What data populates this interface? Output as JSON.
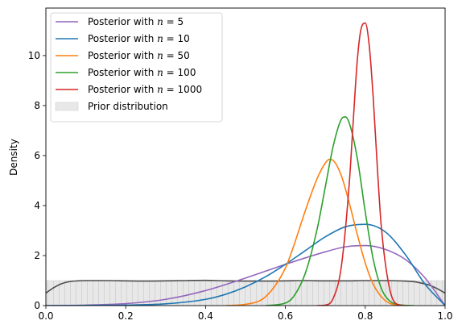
{
  "chart_data": {
    "type": "line",
    "xlabel": "",
    "ylabel": "Density",
    "xlim": [
      0,
      1
    ],
    "ylim": [
      0,
      11.9
    ],
    "x_ticks": [
      0.0,
      0.2,
      0.4,
      0.6,
      0.8,
      1.0
    ],
    "x_tick_labels": [
      "0.0",
      "0.2",
      "0.4",
      "0.6",
      "0.8",
      "1.0"
    ],
    "y_ticks": [
      0,
      2,
      4,
      6,
      8,
      10
    ],
    "y_tick_labels": [
      "0",
      "2",
      "4",
      "6",
      "8",
      "10"
    ],
    "grid": false,
    "legend_position": "upper-left",
    "prior": {
      "name": "Prior distribution",
      "fill_color": "#e8e8e8",
      "line_color": "#4d4d4d",
      "x": [
        0.0,
        0.02,
        0.04,
        0.06,
        0.08,
        0.1,
        0.15,
        0.2,
        0.25,
        0.3,
        0.35,
        0.4,
        0.45,
        0.5,
        0.55,
        0.6,
        0.65,
        0.7,
        0.75,
        0.8,
        0.85,
        0.9,
        0.92,
        0.94,
        0.96,
        0.98,
        1.0
      ],
      "y": [
        0.5,
        0.72,
        0.88,
        0.96,
        0.99,
        1.0,
        1.0,
        0.99,
        0.98,
        0.99,
        1.0,
        1.01,
        0.99,
        0.98,
        0.98,
        0.99,
        1.0,
        0.99,
        0.99,
        1.0,
        1.0,
        0.98,
        0.96,
        0.9,
        0.82,
        0.68,
        0.5
      ]
    },
    "series": [
      {
        "name": "Posterior with $n = 5$",
        "legend": {
          "prefix": "Posterior with ",
          "var": "n",
          "value": "5"
        },
        "color": "#9467bd",
        "x": [
          0.0,
          0.1,
          0.2,
          0.3,
          0.4,
          0.5,
          0.6,
          0.7,
          0.75,
          0.8,
          0.85,
          0.9,
          0.95,
          1.0
        ],
        "y": [
          0.0,
          0.02,
          0.08,
          0.25,
          0.6,
          1.1,
          1.65,
          2.15,
          2.35,
          2.4,
          2.25,
          1.85,
          1.1,
          0.0
        ]
      },
      {
        "name": "Posterior with $n = 10$",
        "legend": {
          "prefix": "Posterior with ",
          "var": "n",
          "value": "10"
        },
        "color": "#1f77b4",
        "x": [
          0.0,
          0.2,
          0.3,
          0.4,
          0.45,
          0.5,
          0.55,
          0.6,
          0.65,
          0.7,
          0.75,
          0.8,
          0.85,
          0.9,
          0.95,
          1.0
        ],
        "y": [
          0.0,
          0.02,
          0.07,
          0.25,
          0.45,
          0.75,
          1.15,
          1.65,
          2.2,
          2.75,
          3.15,
          3.25,
          2.95,
          2.05,
          0.85,
          0.0
        ]
      },
      {
        "name": "Posterior with $n = 50$",
        "legend": {
          "prefix": "Posterior with ",
          "var": "n",
          "value": "50"
        },
        "color": "#ff7f0e",
        "x": [
          0.45,
          0.5,
          0.55,
          0.6,
          0.62,
          0.65,
          0.68,
          0.7,
          0.71,
          0.72,
          0.74,
          0.76,
          0.78,
          0.8,
          0.82,
          0.85,
          0.88,
          0.9
        ],
        "y": [
          0.0,
          0.05,
          0.35,
          1.5,
          2.35,
          3.8,
          5.1,
          5.7,
          5.85,
          5.8,
          5.2,
          4.1,
          2.85,
          1.7,
          0.85,
          0.2,
          0.02,
          0.0
        ]
      },
      {
        "name": "Posterior with $n = 100$",
        "legend": {
          "prefix": "Posterior with ",
          "var": "n",
          "value": "100"
        },
        "color": "#2ca02c",
        "x": [
          0.55,
          0.6,
          0.62,
          0.65,
          0.68,
          0.7,
          0.72,
          0.74,
          0.75,
          0.76,
          0.78,
          0.8,
          0.82,
          0.84,
          0.86,
          0.88,
          0.9,
          0.92
        ],
        "y": [
          0.0,
          0.1,
          0.35,
          1.3,
          3.1,
          4.75,
          6.4,
          7.45,
          7.55,
          7.3,
          5.9,
          3.75,
          1.85,
          0.7,
          0.2,
          0.05,
          0.01,
          0.0
        ]
      },
      {
        "name": "Posterior with $n = 1000$",
        "legend": {
          "prefix": "Posterior with ",
          "var": "n",
          "value": "1000"
        },
        "color": "#d62728",
        "x": [
          0.68,
          0.7,
          0.72,
          0.74,
          0.76,
          0.77,
          0.78,
          0.79,
          0.8,
          0.81,
          0.82,
          0.83,
          0.84,
          0.86,
          0.88,
          0.9
        ],
        "y": [
          0.0,
          0.02,
          0.3,
          1.55,
          4.9,
          7.4,
          9.8,
          11.1,
          11.3,
          10.4,
          8.3,
          5.6,
          3.2,
          0.75,
          0.05,
          0.0
        ]
      }
    ]
  }
}
